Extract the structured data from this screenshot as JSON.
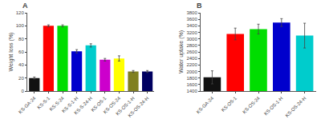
{
  "chart_data": [
    {
      "type": "bar",
      "title": "A",
      "categories": [
        "KS-GA-24",
        "KS-S-1",
        "KS-S-24",
        "KS-S-1-H",
        "KS-S-24-H",
        "KS-OS-1",
        "KS-OS-24",
        "KS-OS-1-H",
        "KS-OS-24-H"
      ],
      "values": [
        20,
        100,
        100,
        61,
        70,
        48,
        50,
        30,
        30
      ],
      "errors": [
        1.5,
        1.5,
        1.5,
        2.5,
        2.5,
        2.0,
        4.0,
        1.5,
        1.5
      ],
      "colors": [
        "#111111",
        "#ff0000",
        "#00dd00",
        "#0000cc",
        "#00cccc",
        "#cc00cc",
        "#ffff00",
        "#808020",
        "#000060"
      ],
      "ylabel": "Weight loss (%)",
      "ylim": [
        0,
        120
      ],
      "yticks": [
        0,
        20,
        40,
        60,
        80,
        100,
        120
      ],
      "grid": false
    },
    {
      "type": "bar",
      "title": "B",
      "categories": [
        "KS-GA-24",
        "KS-OS-1",
        "KS-OS-24",
        "KS-OS-1-H",
        "KS-OS-24-H"
      ],
      "values": [
        1820,
        3150,
        3300,
        3500,
        3100
      ],
      "errors": [
        200,
        180,
        150,
        120,
        380
      ],
      "colors": [
        "#111111",
        "#ff0000",
        "#00dd00",
        "#0000cc",
        "#00cccc"
      ],
      "ylabel": "Water uptake (%)",
      "ylim": [
        1400,
        3800
      ],
      "yticks": [
        1400,
        1600,
        1800,
        2000,
        2200,
        2400,
        2600,
        2800,
        3000,
        3200,
        3400,
        3600,
        3800
      ],
      "grid": false
    }
  ]
}
